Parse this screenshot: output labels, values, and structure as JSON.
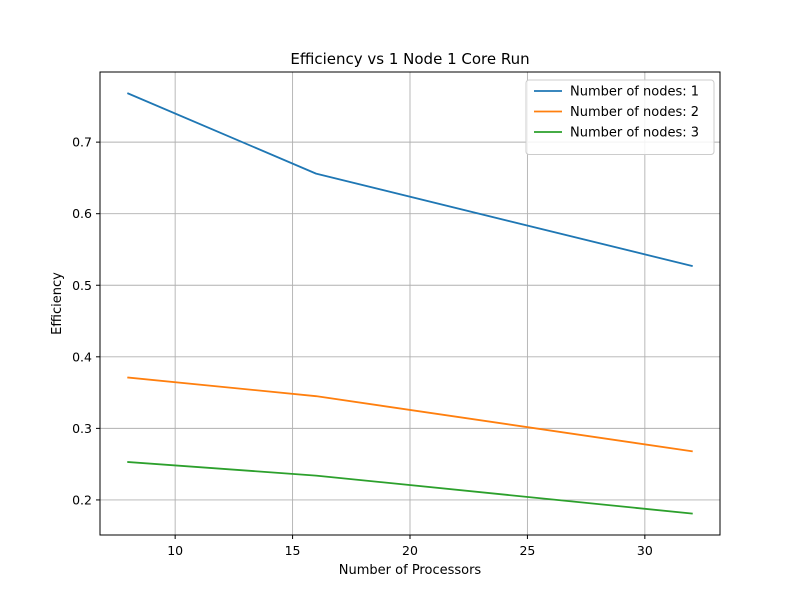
{
  "chart_data": {
    "type": "line",
    "title": "Efficiency vs 1 Node 1 Core Run",
    "xlabel": "Number of Processors",
    "ylabel": "Efficiency",
    "x": [
      8,
      16,
      32
    ],
    "xlim": [
      6.8,
      33.2
    ],
    "ylim": [
      0.151,
      0.798
    ],
    "xticks": [
      10,
      15,
      20,
      25,
      30
    ],
    "yticks": [
      0.2,
      0.3,
      0.4,
      0.5,
      0.6,
      0.7
    ],
    "ytick_labels": [
      "0.2",
      "0.3",
      "0.4",
      "0.5",
      "0.6",
      "0.7"
    ],
    "grid": true,
    "legend_position": "upper right",
    "series": [
      {
        "name": "Number of nodes: 1",
        "color": "#1f77b4",
        "values": [
          0.768,
          0.656,
          0.527
        ]
      },
      {
        "name": "Number of nodes: 2",
        "color": "#ff7f0e",
        "values": [
          0.371,
          0.345,
          0.268
        ]
      },
      {
        "name": "Number of nodes: 3",
        "color": "#2ca02c",
        "values": [
          0.253,
          0.234,
          0.181
        ]
      }
    ]
  }
}
